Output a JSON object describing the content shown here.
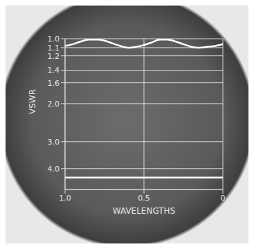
{
  "chart_data": {
    "type": "line",
    "x_label": "WAVELENGTHS",
    "y_label": "VSWR",
    "x": [
      1.0,
      0.95,
      0.9,
      0.85,
      0.8,
      0.75,
      0.7,
      0.65,
      0.6,
      0.55,
      0.5,
      0.45,
      0.4,
      0.35,
      0.3,
      0.25,
      0.2,
      0.15,
      0.1,
      0.05,
      0.0
    ],
    "series": [
      {
        "color": "#ffffff",
        "values": [
          1.08,
          1.06,
          1.03,
          1.01,
          1.01,
          1.02,
          1.05,
          1.08,
          1.1,
          1.09,
          1.07,
          1.04,
          1.01,
          1.01,
          1.03,
          1.06,
          1.09,
          1.1,
          1.09,
          1.08,
          1.06
        ]
      },
      {
        "color": "#ffffff",
        "values": [
          4.4,
          4.4,
          4.4,
          4.4,
          4.4,
          4.4,
          4.4,
          4.4,
          4.4,
          4.4,
          4.4,
          4.4,
          4.4,
          4.4,
          4.4,
          4.4,
          4.4,
          4.4,
          4.4,
          4.4,
          4.4
        ]
      }
    ],
    "xlim": [
      0,
      1
    ],
    "xticks": [
      {
        "value": 1,
        "label": "1.0"
      },
      0.5,
      0
    ],
    "ylim": [
      1,
      5
    ],
    "yticks": [
      {
        "value": 1,
        "label": "1.0"
      },
      1.1,
      1.2,
      1.4,
      1.6,
      {
        "value": 2,
        "label": "2.0"
      },
      {
        "value": 3,
        "label": "3.0"
      },
      {
        "value": 4,
        "label": "4.0"
      }
    ],
    "log": "y",
    "grid": true
  }
}
